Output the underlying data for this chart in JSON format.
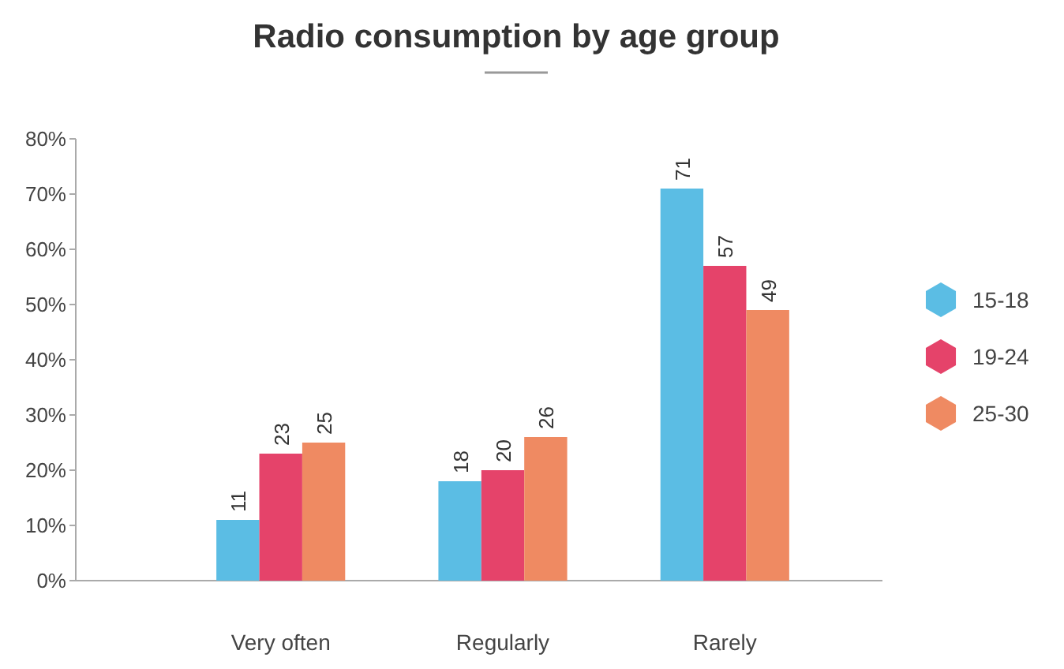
{
  "chart_data": {
    "type": "bar",
    "title": "Radio consumption by age group",
    "categories": [
      "Very often",
      "Regularly",
      "Rarely"
    ],
    "series": [
      {
        "name": "15-18",
        "color": "#5bbde4",
        "values": [
          11,
          18,
          71
        ]
      },
      {
        "name": "19-24",
        "color": "#e5436a",
        "values": [
          23,
          20,
          57
        ]
      },
      {
        "name": "25-30",
        "color": "#ef8a62",
        "values": [
          25,
          26,
          49
        ]
      }
    ],
    "ylim": [
      0,
      80
    ],
    "yticks": [
      {
        "value": 0,
        "label": "0%"
      },
      {
        "value": 10,
        "label": "10%"
      },
      {
        "value": 20,
        "label": "20%"
      },
      {
        "value": 30,
        "label": "30%"
      },
      {
        "value": 40,
        "label": "40%"
      },
      {
        "value": 50,
        "label": "50%"
      },
      {
        "value": 60,
        "label": "60%"
      },
      {
        "value": 70,
        "label": "70%"
      },
      {
        "value": 80,
        "label": "80%"
      }
    ],
    "data_labels": true,
    "legend": "right",
    "grid": false
  }
}
